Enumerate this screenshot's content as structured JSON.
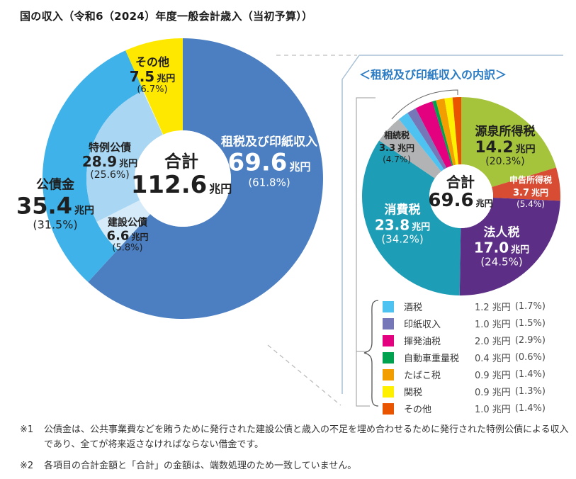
{
  "page_title": "国の収入（令和6（2024）年度一般会計歳入（当初予算））",
  "left_chart_labels": {
    "tax": {
      "name": "租税及び印紙収入",
      "value": "69.6",
      "unit": "兆円",
      "pct": "(61.8%)"
    },
    "total": {
      "name": "合計",
      "value": "112.6",
      "unit": "兆円"
    },
    "other": {
      "name": "その他",
      "value": "7.5",
      "unit": "兆円",
      "pct": "(6.7%)"
    },
    "special_bond": {
      "name": "特例公債",
      "value": "28.9",
      "unit": "兆円",
      "pct": "(25.6%)"
    },
    "bond": {
      "name": "公債金",
      "value": "35.4",
      "unit": "兆円",
      "pct": "(31.5%)"
    },
    "construction_bond": {
      "name": "建設公債",
      "value": "6.6",
      "unit": "兆円",
      "pct": "(5.8%)"
    }
  },
  "right_chart": {
    "panel_title": "＜租税及び印紙収入の内訳＞",
    "labels": {
      "withholding": {
        "name": "源泉所得税",
        "value": "14.2",
        "unit": "兆円",
        "pct": "(20.3%)"
      },
      "self_assessed": {
        "name": "申告所得税",
        "value": "3.7",
        "unit": "兆円",
        "pct": "(5.4%)"
      },
      "corporate": {
        "name": "法人税",
        "value": "17.0",
        "unit": "兆円",
        "pct": "(24.5%)"
      },
      "consumption": {
        "name": "消費税",
        "value": "23.8",
        "unit": "兆円",
        "pct": "(34.2%)"
      },
      "inheritance": {
        "name": "相続税",
        "value": "3.3",
        "unit": "兆円",
        "pct": "(4.7%)"
      },
      "total": {
        "name": "合計",
        "value": "69.6",
        "unit": "兆円"
      }
    },
    "legend": [
      {
        "label": "酒税",
        "amount": "1.2 兆円",
        "pct": "(1.7%)",
        "color": "#4EC2F0"
      },
      {
        "label": "印紙収入",
        "amount": "1.0 兆円",
        "pct": "(1.5%)",
        "color": "#7577B9"
      },
      {
        "label": "揮発油税",
        "amount": "2.0 兆円",
        "pct": "(2.9%)",
        "color": "#E3017F"
      },
      {
        "label": "自動車重量税",
        "amount": "0.4 兆円",
        "pct": "(0.6%)",
        "color": "#00A24F"
      },
      {
        "label": "たばこ税",
        "amount": "0.9 兆円",
        "pct": "(1.4%)",
        "color": "#F29D00"
      },
      {
        "label": "関税",
        "amount": "0.9 兆円",
        "pct": "(1.3%)",
        "color": "#FFF000"
      },
      {
        "label": "その他",
        "amount": "1.0 兆円",
        "pct": "(1.4%)",
        "color": "#E85400"
      }
    ]
  },
  "footnotes": {
    "note1_marker": "※1",
    "note1_text": "公債金は、公共事業費などを賄うために発行された建設公債と歳入の不足を埋め合わせるために発行された特例公債による収入であり、全てが将来返さなければならない借金です。",
    "note2_marker": "※2",
    "note2_text": "各項目の合計金額と「合計」の金額は、端数処理のため一致していません。"
  },
  "chart_data": [
    {
      "type": "donut",
      "title": "国の収入（令和6（2024）年度一般会計歳入（当初予算））",
      "unit": "兆円",
      "total": {
        "label": "合計",
        "value": 112.6
      },
      "legend_position": "on-chart",
      "segments": [
        {
          "label": "租税及び印紙収入",
          "value": 69.6,
          "pct": 61.8,
          "color": "#4C7FC1"
        },
        {
          "label": "公債金",
          "value": 35.4,
          "pct": 31.5,
          "color": "#3FB2E9",
          "children": [
            {
              "label": "建設公債",
              "value": 6.6,
              "pct": 5.8,
              "color": "#D6EBF9"
            },
            {
              "label": "特例公債",
              "value": 28.9,
              "pct": 25.6,
              "color": "#A9D6F3"
            }
          ]
        },
        {
          "label": "その他",
          "value": 7.5,
          "pct": 6.7,
          "color": "#FFE800"
        }
      ]
    },
    {
      "type": "donut",
      "title": "＜租税及び印紙収入の内訳＞",
      "unit": "兆円",
      "total": {
        "label": "合計",
        "value": 69.6
      },
      "legend_position": "below",
      "segments": [
        {
          "label": "源泉所得税",
          "value": 14.2,
          "pct": 20.3,
          "color": "#A5C43C"
        },
        {
          "label": "申告所得税",
          "value": 3.7,
          "pct": 5.4,
          "color": "#D74C33"
        },
        {
          "label": "法人税",
          "value": 17.0,
          "pct": 24.5,
          "color": "#5C2E85"
        },
        {
          "label": "消費税",
          "value": 23.8,
          "pct": 34.2,
          "color": "#1E9DB6"
        },
        {
          "label": "相続税",
          "value": 3.3,
          "pct": 4.7,
          "color": "#B2B3B4"
        },
        {
          "label": "酒税",
          "value": 1.2,
          "pct": 1.7,
          "color": "#4EC2F0"
        },
        {
          "label": "印紙収入",
          "value": 1.0,
          "pct": 1.5,
          "color": "#7577B9"
        },
        {
          "label": "揮発油税",
          "value": 2.0,
          "pct": 2.9,
          "color": "#E3017F"
        },
        {
          "label": "自動車重量税",
          "value": 0.4,
          "pct": 0.6,
          "color": "#00A24F"
        },
        {
          "label": "たばこ税",
          "value": 0.9,
          "pct": 1.4,
          "color": "#F29D00"
        },
        {
          "label": "関税",
          "value": 0.9,
          "pct": 1.3,
          "color": "#FFF000"
        },
        {
          "label": "その他",
          "value": 1.0,
          "pct": 1.4,
          "color": "#E85400"
        }
      ]
    }
  ]
}
